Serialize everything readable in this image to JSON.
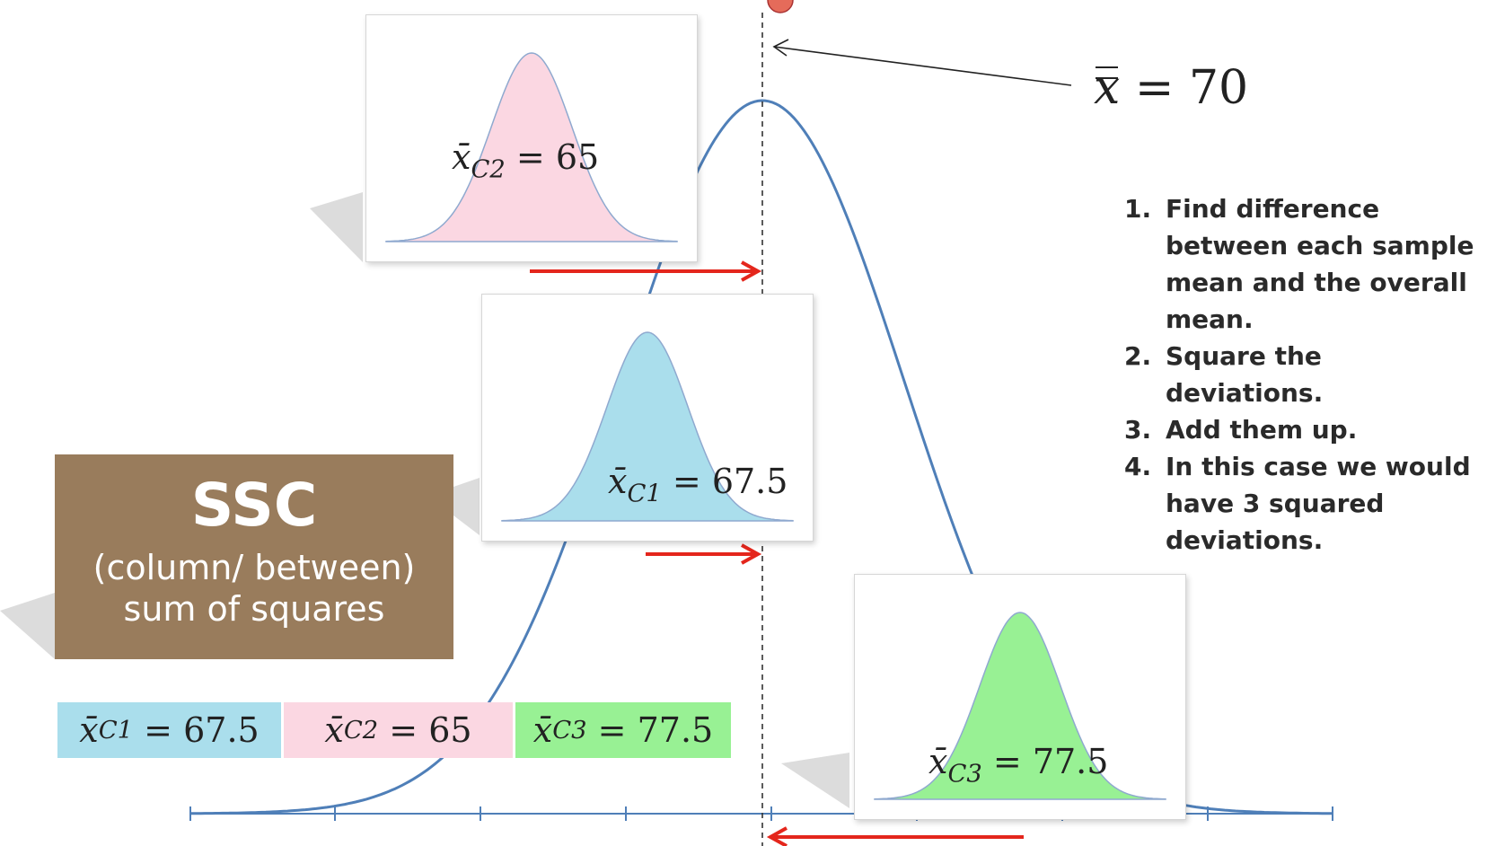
{
  "grand_mean": {
    "symbol": "x̿",
    "equals": "=",
    "value": "70"
  },
  "steps": [
    {
      "number": "1.",
      "text": "Find difference between each sample mean and the overall mean."
    },
    {
      "number": "2.",
      "text": "Square the deviations."
    },
    {
      "number": "3.",
      "text": "Add them up."
    },
    {
      "number": "4.",
      "text": "In this case we would have 3 squared deviations."
    }
  ],
  "ssc": {
    "title": "SSC",
    "subtitle_line1": "(column/ between)",
    "subtitle_line2": "sum of squares"
  },
  "samples": {
    "c1": {
      "label_var": "x̄",
      "label_sub": "C1",
      "equals": "=",
      "value": "67.5",
      "fill": "#aadeec"
    },
    "c2": {
      "label_var": "x̄",
      "label_sub": "C2",
      "equals": "=",
      "value": "65",
      "fill": "#fbd7e2"
    },
    "c3": {
      "label_var": "x̄",
      "label_sub": "C3",
      "equals": "=",
      "value": "77.5",
      "fill": "#98f194"
    }
  },
  "tags": {
    "c1": {
      "var": "x̄",
      "sub": "C1",
      "equals": "=",
      "value": "67.5",
      "bg": "#aadeec"
    },
    "c2": {
      "var": "x̄",
      "sub": "C2",
      "equals": "=",
      "value": "65",
      "bg": "#fbd7e2"
    },
    "c3": {
      "var": "x̄",
      "sub": "C3",
      "equals": "=",
      "value": "77.5",
      "bg": "#98f194"
    }
  },
  "colors": {
    "main_curve": "#4f7fb8",
    "arrow": "#e4261c",
    "axis": "#4f7fb8",
    "dashed_line": "#333333"
  }
}
